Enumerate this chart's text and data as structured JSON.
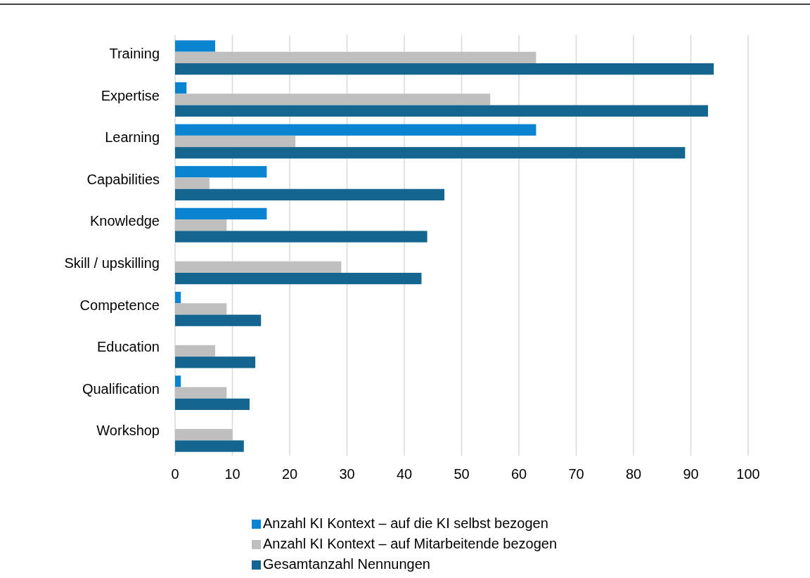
{
  "chart_data": {
    "type": "bar",
    "orientation": "horizontal",
    "categories": [
      "Training",
      "Expertise",
      "Learning",
      "Capabilities",
      "Knowledge",
      "Skill / upskilling",
      "Competence",
      "Education",
      "Qualification",
      "Workshop"
    ],
    "series": [
      {
        "name": "Anzahl KI Kontext – auf die KI selbst bezogen",
        "color": "#0a84d0",
        "values": [
          7,
          2,
          63,
          16,
          16,
          null,
          1,
          null,
          1,
          null
        ]
      },
      {
        "name": "Anzahl KI Kontext – auf Mitarbeitende bezogen",
        "color": "#bfbfbf",
        "values": [
          63,
          55,
          21,
          6,
          9,
          29,
          9,
          7,
          9,
          10
        ]
      },
      {
        "name": "Gesamtanzahl Nennungen",
        "color": "#146690",
        "values": [
          94,
          93,
          89,
          47,
          44,
          43,
          15,
          14,
          13,
          12
        ]
      }
    ],
    "xlim": [
      0,
      100
    ],
    "xticks": [
      0,
      10,
      20,
      30,
      40,
      50,
      60,
      70,
      80,
      90,
      100
    ],
    "grid": "x",
    "legend": "bottom"
  }
}
